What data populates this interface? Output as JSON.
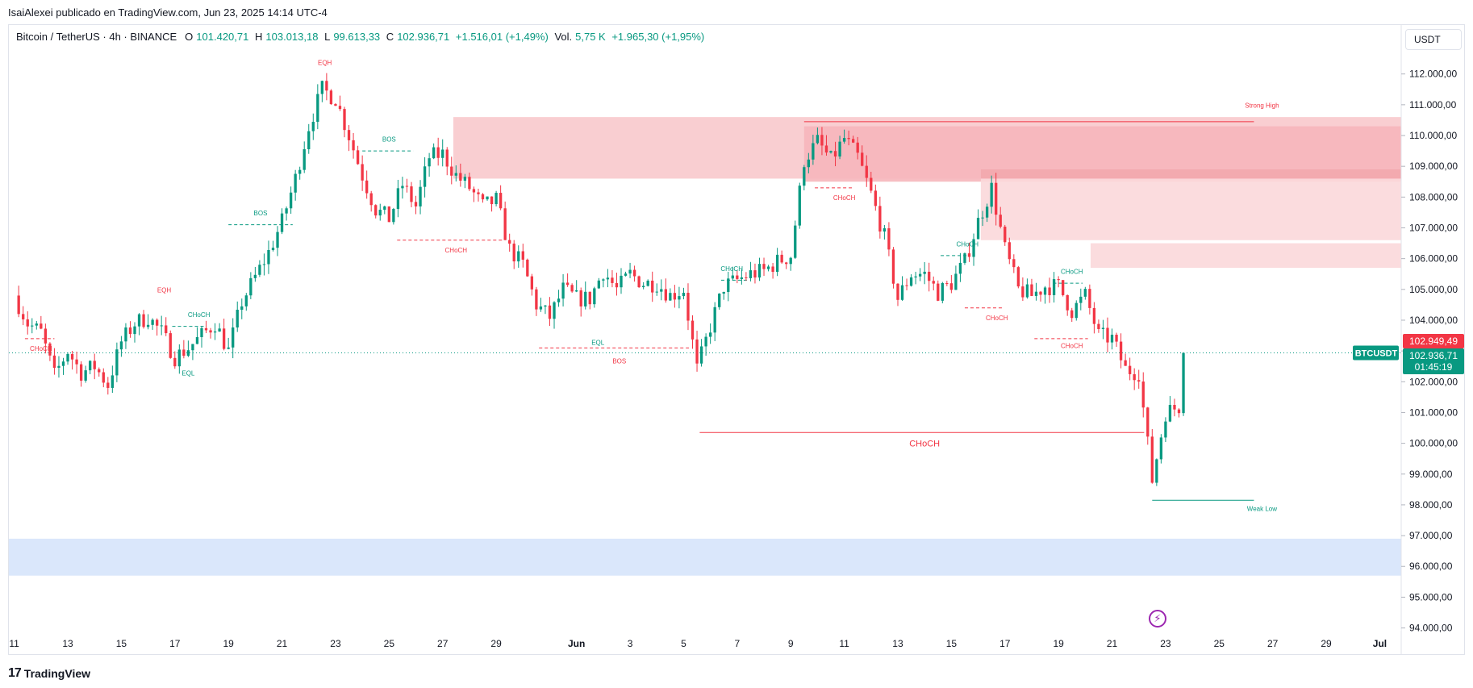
{
  "header": {
    "published": "IsaiAlexei publicado en TradingView.com, Jun 23, 2025 14:14 UTC-4"
  },
  "legend": {
    "symbol": "Bitcoin / TetherUS · 4h · BINANCE",
    "open_label": "O",
    "open": "101.420,71",
    "high_label": "H",
    "high": "103.013,18",
    "low_label": "L",
    "low": "99.613,33",
    "close_label": "C",
    "close": "102.936,71",
    "change": "+1.516,01 (+1,49%)",
    "vol_label": "Vol.",
    "vol": "5,75 K",
    "vol_change": "+1.965,30 (+1,95%)"
  },
  "currency_button": "USDT",
  "footer": {
    "logo": "TradingView"
  },
  "chart_data": {
    "type": "candlestick",
    "symbol": "BTCUSDT",
    "timeframe": "4h",
    "ylim": [
      93700,
      112700
    ],
    "y_ticks": [
      94000,
      95000,
      96000,
      97000,
      98000,
      99000,
      100000,
      101000,
      102000,
      103000,
      104000,
      105000,
      106000,
      107000,
      108000,
      109000,
      110000,
      111000,
      112000
    ],
    "y_tick_labels": [
      "94.000,00",
      "95.000,00",
      "96.000,00",
      "97.000,00",
      "98.000,00",
      "99.000,00",
      "100.000,00",
      "101.000,00",
      "102.000,00",
      "103.000,00",
      "104.000,00",
      "105.000,00",
      "106.000,00",
      "107.000,00",
      "108.000,00",
      "109.000,00",
      "110.000,00",
      "111.000,00",
      "112.000,00"
    ],
    "x_range_days": [
      -0.2,
      51.8
    ],
    "x_ticks": [
      {
        "day": 0,
        "label": "11"
      },
      {
        "day": 2,
        "label": "13"
      },
      {
        "day": 4,
        "label": "15"
      },
      {
        "day": 6,
        "label": "17"
      },
      {
        "day": 8,
        "label": "19"
      },
      {
        "day": 10,
        "label": "21"
      },
      {
        "day": 12,
        "label": "23"
      },
      {
        "day": 14,
        "label": "25"
      },
      {
        "day": 16,
        "label": "27"
      },
      {
        "day": 18,
        "label": "29"
      },
      {
        "day": 21,
        "label": "Jun"
      },
      {
        "day": 23,
        "label": "3"
      },
      {
        "day": 25,
        "label": "5"
      },
      {
        "day": 27,
        "label": "7"
      },
      {
        "day": 29,
        "label": "9"
      },
      {
        "day": 31,
        "label": "11"
      },
      {
        "day": 33,
        "label": "13"
      },
      {
        "day": 35,
        "label": "15"
      },
      {
        "day": 37,
        "label": "17"
      },
      {
        "day": 39,
        "label": "19"
      },
      {
        "day": 41,
        "label": "21"
      },
      {
        "day": 43,
        "label": "23"
      },
      {
        "day": 45,
        "label": "25"
      },
      {
        "day": 47,
        "label": "27"
      },
      {
        "day": 49,
        "label": "29"
      },
      {
        "day": 51,
        "label": "Jul"
      }
    ],
    "price_path": [
      [
        0,
        104800
      ],
      [
        0.5,
        103900
      ],
      [
        1,
        103600
      ],
      [
        1.5,
        102200
      ],
      [
        2,
        103000
      ],
      [
        2.5,
        102300
      ],
      [
        3,
        102500
      ],
      [
        3.5,
        101900
      ],
      [
        4,
        103300
      ],
      [
        4.5,
        103900
      ],
      [
        5,
        104100
      ],
      [
        5.5,
        103600
      ],
      [
        6,
        102800
      ],
      [
        6.5,
        103100
      ],
      [
        7,
        103500
      ],
      [
        7.5,
        103900
      ],
      [
        8,
        103000
      ],
      [
        8.5,
        104600
      ],
      [
        9,
        105400
      ],
      [
        9.5,
        106200
      ],
      [
        10,
        107200
      ],
      [
        10.5,
        108600
      ],
      [
        11,
        110300
      ],
      [
        11.5,
        111500
      ],
      [
        12,
        111200
      ],
      [
        12.5,
        110000
      ],
      [
        13,
        108700
      ],
      [
        13.5,
        107600
      ],
      [
        14,
        107300
      ],
      [
        14.5,
        108400
      ],
      [
        15,
        107700
      ],
      [
        15.5,
        109300
      ],
      [
        16,
        109400
      ],
      [
        16.5,
        108700
      ],
      [
        17,
        108300
      ],
      [
        17.5,
        107700
      ],
      [
        18,
        107900
      ],
      [
        18.5,
        106300
      ],
      [
        19,
        105800
      ],
      [
        19.5,
        104500
      ],
      [
        20,
        104100
      ],
      [
        20.5,
        105000
      ],
      [
        21,
        104700
      ],
      [
        21.5,
        104700
      ],
      [
        22,
        105600
      ],
      [
        22.5,
        105000
      ],
      [
        23,
        105500
      ],
      [
        23.5,
        105200
      ],
      [
        24,
        105200
      ],
      [
        24.5,
        104800
      ],
      [
        25,
        105000
      ],
      [
        25.5,
        102400
      ],
      [
        26,
        103800
      ],
      [
        26.5,
        105100
      ],
      [
        27,
        105300
      ],
      [
        27.5,
        105500
      ],
      [
        28,
        105600
      ],
      [
        28.5,
        105900
      ],
      [
        29,
        106100
      ],
      [
        29.5,
        109200
      ],
      [
        30,
        109800
      ],
      [
        30.5,
        109200
      ],
      [
        31,
        109900
      ],
      [
        31.5,
        109300
      ],
      [
        32,
        108100
      ],
      [
        32.5,
        106700
      ],
      [
        33,
        104700
      ],
      [
        33.5,
        105500
      ],
      [
        34,
        105500
      ],
      [
        34.5,
        104900
      ],
      [
        35,
        105200
      ],
      [
        35.5,
        105900
      ],
      [
        36,
        107200
      ],
      [
        36.5,
        108300
      ],
      [
        37,
        106300
      ],
      [
        37.5,
        105000
      ],
      [
        38,
        104800
      ],
      [
        38.5,
        105100
      ],
      [
        39,
        105100
      ],
      [
        39.5,
        104300
      ],
      [
        40,
        104800
      ],
      [
        40.5,
        103500
      ],
      [
        41,
        103400
      ],
      [
        41.5,
        102400
      ],
      [
        42,
        102300
      ],
      [
        42.5,
        98800
      ],
      [
        43,
        101000
      ],
      [
        43.5,
        101200
      ],
      [
        43.7,
        102900
      ]
    ],
    "last_price": 102936.71,
    "bid_label": "102.949,49",
    "price_label": "102.936,71",
    "countdown": "01:45:19",
    "symbol_tag": "BTCUSDT",
    "zones": [
      {
        "x1": 16.4,
        "x2": 51.8,
        "y1": 108600,
        "y2": 110600,
        "color": "#f8c9cc"
      },
      {
        "x1": 29.5,
        "x2": 51.8,
        "y1": 108500,
        "y2": 110300,
        "color": "#f6b6bb"
      },
      {
        "x1": 36.1,
        "x2": 51.8,
        "y1": 106600,
        "y2": 108900,
        "color": "#fbd8da"
      },
      {
        "x1": 36.1,
        "x2": 51.8,
        "y1": 108600,
        "y2": 108900,
        "color": "#f2a5ab"
      },
      {
        "x1": 40.2,
        "x2": 51.8,
        "y1": 105700,
        "y2": 106500,
        "color": "#fbd8da"
      },
      {
        "x1": -0.2,
        "x2": 51.8,
        "y1": 95700,
        "y2": 96900,
        "color": "#d6e4fb"
      }
    ],
    "structure_lines": [
      {
        "x1": 29.5,
        "x2": 46.3,
        "y": 110450,
        "color": "#f23645",
        "dash": false
      },
      {
        "x1": 25.6,
        "x2": 42.2,
        "y": 100350,
        "color": "#f23645",
        "dash": false
      },
      {
        "x1": 42.5,
        "x2": 46.3,
        "y": 98150,
        "color": "#089981",
        "dash": false
      },
      {
        "x1": 14.3,
        "x2": 18.3,
        "y": 106600,
        "color": "#f23645",
        "dash": true
      },
      {
        "x1": 19.6,
        "x2": 25.2,
        "y": 103100,
        "color": "#f23645",
        "dash": true
      },
      {
        "x1": 29.9,
        "x2": 31.3,
        "y": 108300,
        "color": "#f23645",
        "dash": true
      },
      {
        "x1": 35.5,
        "x2": 36.9,
        "y": 104400,
        "color": "#f23645",
        "dash": true
      },
      {
        "x1": 38.1,
        "x2": 40.1,
        "y": 103400,
        "color": "#f23645",
        "dash": true
      },
      {
        "x1": 0.4,
        "x2": 1.5,
        "y": 103400,
        "color": "#f23645",
        "dash": true
      },
      {
        "x1": 8.0,
        "x2": 10.4,
        "y": 107100,
        "color": "#089981",
        "dash": true
      },
      {
        "x1": 13.0,
        "x2": 14.9,
        "y": 109500,
        "color": "#089981",
        "dash": true
      },
      {
        "x1": 5.9,
        "x2": 7.1,
        "y": 103800,
        "color": "#089981",
        "dash": true
      },
      {
        "x1": 26.4,
        "x2": 27.4,
        "y": 105300,
        "color": "#089981",
        "dash": true
      },
      {
        "x1": 34.6,
        "x2": 35.6,
        "y": 106100,
        "color": "#089981",
        "dash": true
      },
      {
        "x1": 38.8,
        "x2": 39.9,
        "y": 105200,
        "color": "#089981",
        "dash": true
      }
    ],
    "annotations": [
      {
        "text": "EQH",
        "x": 11.6,
        "y": 112300,
        "color": "#f23645"
      },
      {
        "text": "EQH",
        "x": 5.6,
        "y": 104900,
        "color": "#f23645"
      },
      {
        "text": "BOS",
        "x": 14.0,
        "y": 109800,
        "color": "#089981"
      },
      {
        "text": "BOS",
        "x": 9.2,
        "y": 107400,
        "color": "#089981"
      },
      {
        "text": "CHoCH",
        "x": 1.0,
        "y": 103000,
        "color": "#f23645"
      },
      {
        "text": "CHoCH",
        "x": 6.9,
        "y": 104100,
        "color": "#089981"
      },
      {
        "text": "EQL",
        "x": 6.5,
        "y": 102200,
        "color": "#089981"
      },
      {
        "text": "CHoCH",
        "x": 16.5,
        "y": 106200,
        "color": "#f23645"
      },
      {
        "text": "EQL",
        "x": 21.8,
        "y": 103200,
        "color": "#089981"
      },
      {
        "text": "BOS",
        "x": 22.6,
        "y": 102600,
        "color": "#f23645"
      },
      {
        "text": "CHoCH",
        "x": 26.8,
        "y": 105600,
        "color": "#089981"
      },
      {
        "text": "CHoCH",
        "x": 31.0,
        "y": 107900,
        "color": "#f23645"
      },
      {
        "text": "CHoCH",
        "x": 35.6,
        "y": 106400,
        "color": "#089981"
      },
      {
        "text": "CHoCH",
        "x": 36.7,
        "y": 104000,
        "color": "#f23645"
      },
      {
        "text": "CHoCH",
        "x": 39.5,
        "y": 105500,
        "color": "#089981"
      },
      {
        "text": "CHoCH",
        "x": 39.5,
        "y": 103100,
        "color": "#f23645"
      },
      {
        "text": "CHoCH",
        "x": 34.0,
        "y": 99900,
        "color": "#f23645"
      },
      {
        "text": "Strong High",
        "x": 46.6,
        "y": 110900,
        "color": "#f23645"
      },
      {
        "text": "Weak Low",
        "x": 46.6,
        "y": 97800,
        "color": "#089981"
      }
    ]
  }
}
